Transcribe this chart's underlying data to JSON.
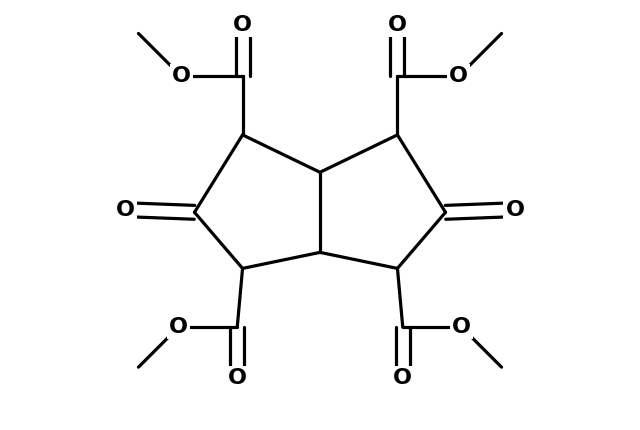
{
  "bg_color": "#ffffff",
  "line_color": "#000000",
  "line_width": 2.3,
  "figsize": [
    6.4,
    4.3
  ],
  "dpi": 100,
  "xlim": [
    0.0,
    10.0
  ],
  "ylim": [
    0.0,
    8.0
  ]
}
